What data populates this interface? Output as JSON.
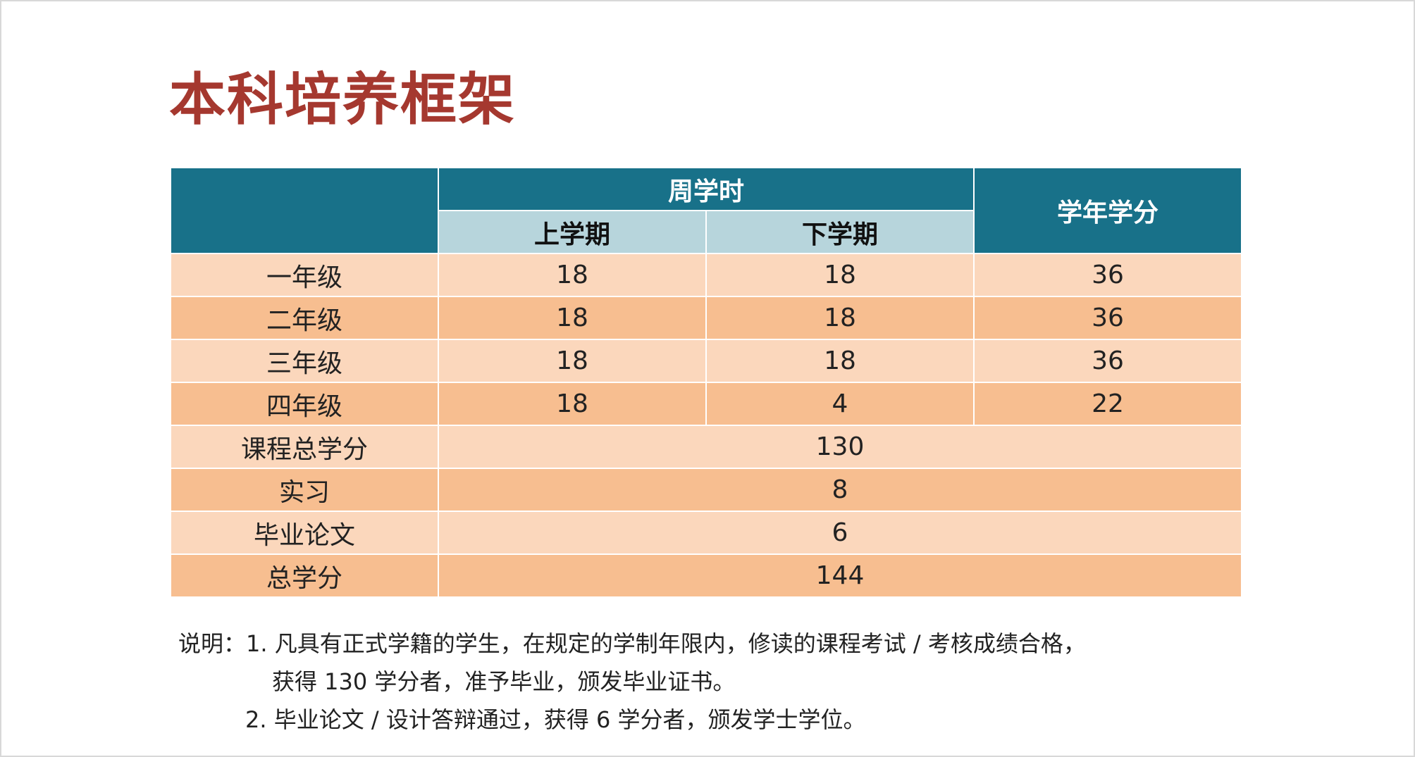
{
  "title": "本科培养框架",
  "table": {
    "header": {
      "corner": "",
      "weekly_hours": "周学时",
      "first_term": "上学期",
      "second_term": "下学期",
      "year_credits": "学年学分"
    },
    "grade_rows": [
      {
        "label": "一年级",
        "first": "18",
        "second": "18",
        "credits": "36"
      },
      {
        "label": "二年级",
        "first": "18",
        "second": "18",
        "credits": "36"
      },
      {
        "label": "三年级",
        "first": "18",
        "second": "18",
        "credits": "36"
      },
      {
        "label": "四年级",
        "first": "18",
        "second": "4",
        "credits": "22"
      }
    ],
    "summary_rows": [
      {
        "label": "课程总学分",
        "value": "130"
      },
      {
        "label": "实习",
        "value": "8"
      },
      {
        "label": "毕业论文",
        "value": "6"
      },
      {
        "label": "总学分",
        "value": "144"
      }
    ]
  },
  "notes": {
    "line1": "说明：1. 凡具有正式学籍的学生，在规定的学制年限内，修读的课程考试 / 考核成绩合格，",
    "line2": "获得 130 学分者，准予毕业，颁发毕业证书。",
    "line3": "2. 毕业论文 / 设计答辩通过，获得 6 学分者，颁发学士学位。"
  },
  "colors": {
    "title": "#a5382f",
    "header_dark": "#187189",
    "header_light": "#b7d5dc",
    "row_light": "#fbd7bc",
    "row_dark": "#f7be90"
  }
}
